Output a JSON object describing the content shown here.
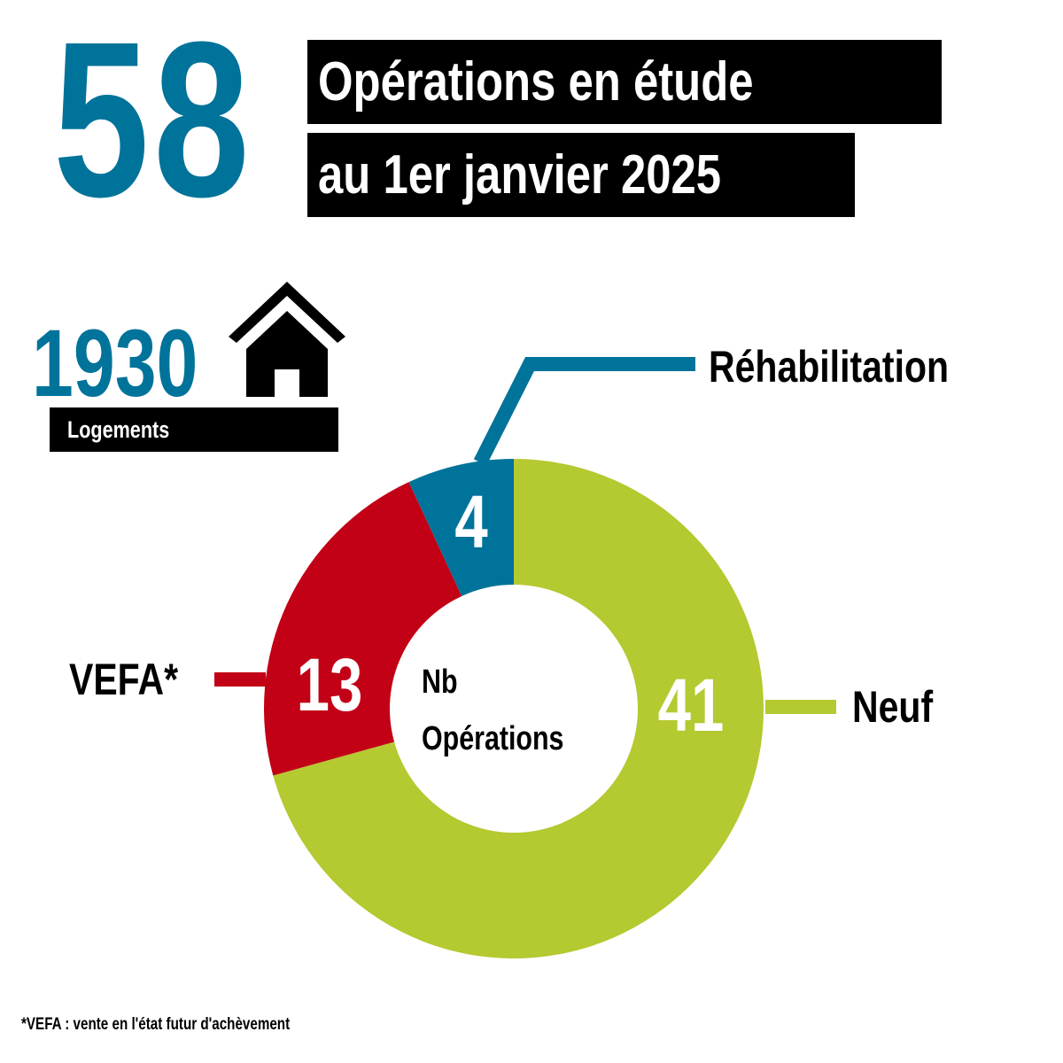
{
  "header": {
    "total_operations": "58",
    "title_line_1": "Opérations en étude",
    "title_line_2": "au 1er janvier 2025"
  },
  "housing": {
    "count": "1930",
    "label": "Logements",
    "icon": "house-icon"
  },
  "chart_data": {
    "type": "pie",
    "center_label_line_1": "Nb",
    "center_label_line_2": "Opérations",
    "slices": [
      {
        "name": "Réhabilitation",
        "value": 4,
        "color": "#00739a"
      },
      {
        "name": "Neuf",
        "value": 41,
        "color": "#b5c930"
      },
      {
        "name": "VEFA*",
        "value": 13,
        "color": "#c20016"
      }
    ]
  },
  "footnote": "*VEFA : vente en l'état futur d'achèvement"
}
